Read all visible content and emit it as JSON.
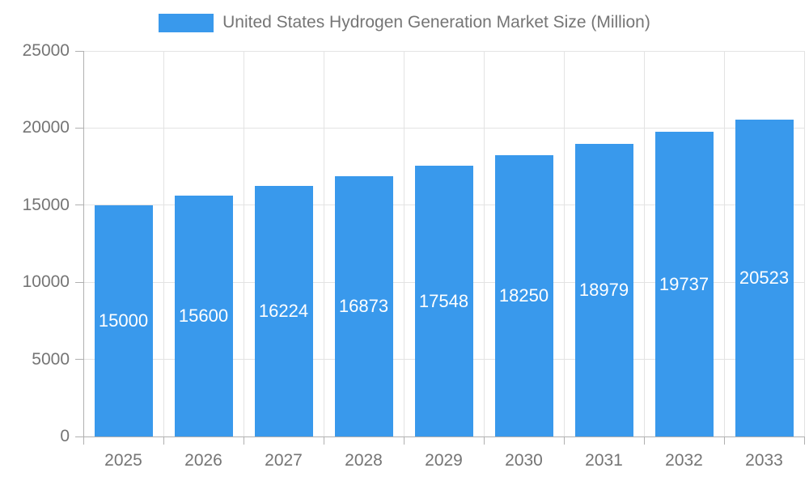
{
  "chart_data": {
    "type": "bar",
    "title": "United States Hydrogen Generation Market Size (Million)",
    "categories": [
      "2025",
      "2026",
      "2027",
      "2028",
      "2029",
      "2030",
      "2031",
      "2032",
      "2033"
    ],
    "values": [
      15000,
      15600,
      16224,
      16873,
      17548,
      18250,
      18979,
      19737,
      20523
    ],
    "bar_value_labels": [
      "15000",
      "15600",
      "16224",
      "16873",
      "17548",
      "18250",
      "18979",
      "19737",
      "20523"
    ],
    "yticks": [
      0,
      5000,
      10000,
      15000,
      20000,
      25000
    ],
    "ytick_labels": [
      "0",
      "5000",
      "10000",
      "15000",
      "20000",
      "25000"
    ],
    "ylim": [
      0,
      25000
    ],
    "xlabel": "",
    "ylabel": "",
    "grid": true,
    "legend_position": "top-center",
    "colors": {
      "bar": "#3999ec",
      "bar_label_text": "#ffffff",
      "axis_text": "#757575",
      "axis_line": "#b0b0b0",
      "gridline": "#e3e3e3",
      "background": "#ffffff"
    }
  }
}
